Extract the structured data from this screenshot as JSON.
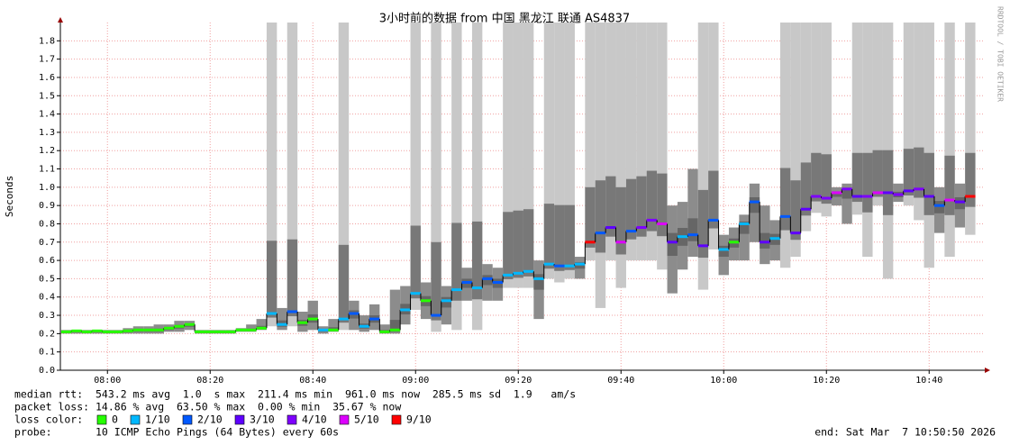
{
  "chart_data": {
    "type": "smokeping",
    "title": "3小时前的数据 from 中国 黑龙江 联通 AS4837",
    "y_label": "Seconds",
    "side_text": "RRDTOOL / TOBI OETIKER",
    "x": [
      "07:52",
      "07:54",
      "07:56",
      "07:58",
      "08:00",
      "08:02",
      "08:04",
      "08:06",
      "08:08",
      "08:10",
      "08:12",
      "08:14",
      "08:16",
      "08:18",
      "08:20",
      "08:22",
      "08:24",
      "08:26",
      "08:28",
      "08:30",
      "08:32",
      "08:34",
      "08:36",
      "08:38",
      "08:40",
      "08:42",
      "08:44",
      "08:46",
      "08:48",
      "08:50",
      "08:52",
      "08:54",
      "08:56",
      "08:58",
      "09:00",
      "09:02",
      "09:04",
      "09:06",
      "09:08",
      "09:10",
      "09:12",
      "09:14",
      "09:16",
      "09:18",
      "09:20",
      "09:22",
      "09:24",
      "09:26",
      "09:28",
      "09:30",
      "09:32",
      "09:34",
      "09:36",
      "09:38",
      "09:40",
      "09:42",
      "09:44",
      "09:46",
      "09:48",
      "09:50",
      "09:52",
      "09:54",
      "09:56",
      "09:58",
      "10:00",
      "10:02",
      "10:04",
      "10:06",
      "10:08",
      "10:10",
      "10:12",
      "10:14",
      "10:16",
      "10:18",
      "10:20",
      "10:22",
      "10:24",
      "10:26",
      "10:28",
      "10:30",
      "10:32",
      "10:34",
      "10:36",
      "10:38",
      "10:40",
      "10:42",
      "10:44",
      "10:46",
      "10:48"
    ],
    "xlim": [
      "07:50:50",
      "10:50:50"
    ],
    "xticks": [
      "08:00",
      "08:20",
      "08:40",
      "09:00",
      "09:20",
      "09:40",
      "10:00",
      "10:20",
      "10:40"
    ],
    "ylim": [
      0,
      1.9
    ],
    "yticks": [
      {
        "value": 0,
        "label": "0.0"
      },
      0.1,
      0.2,
      0.3,
      0.4,
      0.5,
      0.6,
      0.7,
      0.8,
      0.9,
      {
        "value": 1,
        "label": "1.0"
      },
      1.1,
      1.2,
      1.3,
      1.4,
      1.5,
      1.6,
      1.7,
      1.8
    ],
    "grid": true,
    "median": [
      0.21,
      0.215,
      0.21,
      0.215,
      0.21,
      0.21,
      0.215,
      0.22,
      0.22,
      0.22,
      0.23,
      0.24,
      0.25,
      0.21,
      0.21,
      0.21,
      0.21,
      0.22,
      0.22,
      0.23,
      0.31,
      0.25,
      0.32,
      0.26,
      0.28,
      0.22,
      0.22,
      0.28,
      0.31,
      0.24,
      0.28,
      0.21,
      0.22,
      0.33,
      0.42,
      0.38,
      0.3,
      0.38,
      0.44,
      0.48,
      0.45,
      0.5,
      0.48,
      0.52,
      0.53,
      0.54,
      0.5,
      0.58,
      0.57,
      0.57,
      0.58,
      0.7,
      0.75,
      0.78,
      0.7,
      0.76,
      0.78,
      0.82,
      0.8,
      0.7,
      0.73,
      0.74,
      0.68,
      0.82,
      0.66,
      0.7,
      0.8,
      0.92,
      0.7,
      0.72,
      0.84,
      0.75,
      0.88,
      0.95,
      0.94,
      0.97,
      0.99,
      0.95,
      0.95,
      0.97,
      0.97,
      0.96,
      0.98,
      0.99,
      0.95,
      0.9,
      0.93,
      0.92,
      0.95
    ],
    "min": [
      0.2,
      0.2,
      0.2,
      0.2,
      0.2,
      0.2,
      0.2,
      0.2,
      0.2,
      0.2,
      0.21,
      0.21,
      0.22,
      0.2,
      0.2,
      0.2,
      0.2,
      0.21,
      0.21,
      0.22,
      0.24,
      0.22,
      0.24,
      0.21,
      0.22,
      0.2,
      0.21,
      0.22,
      0.22,
      0.21,
      0.22,
      0.2,
      0.2,
      0.25,
      0.33,
      0.28,
      0.21,
      0.25,
      0.22,
      0.38,
      0.22,
      0.38,
      0.38,
      0.45,
      0.45,
      0.45,
      0.28,
      0.5,
      0.48,
      0.5,
      0.5,
      0.6,
      0.34,
      0.6,
      0.45,
      0.6,
      0.6,
      0.6,
      0.55,
      0.42,
      0.55,
      0.62,
      0.44,
      0.66,
      0.52,
      0.6,
      0.6,
      0.7,
      0.58,
      0.6,
      0.56,
      0.62,
      0.76,
      0.86,
      0.84,
      0.9,
      0.8,
      0.85,
      0.62,
      0.9,
      0.5,
      0.92,
      0.9,
      0.82,
      0.56,
      0.75,
      0.62,
      0.78,
      0.74
    ],
    "max": [
      0.22,
      0.22,
      0.22,
      0.22,
      0.22,
      0.22,
      0.23,
      0.24,
      0.24,
      0.25,
      0.25,
      0.27,
      0.27,
      0.22,
      0.22,
      0.22,
      0.22,
      0.23,
      0.25,
      0.28,
      1.9,
      0.34,
      1.9,
      0.32,
      0.38,
      0.24,
      0.28,
      1.9,
      0.38,
      0.3,
      0.36,
      0.25,
      0.44,
      0.46,
      1.9,
      0.48,
      1.9,
      0.46,
      1.9,
      0.56,
      1.9,
      0.58,
      0.56,
      1.9,
      1.9,
      1.9,
      0.6,
      1.9,
      1.9,
      1.9,
      0.62,
      1.9,
      1.9,
      1.9,
      1.9,
      1.9,
      1.9,
      1.9,
      1.9,
      0.9,
      0.92,
      1.1,
      1.9,
      1.9,
      0.74,
      0.78,
      0.85,
      1.02,
      0.9,
      0.82,
      1.9,
      1.9,
      1.9,
      1.9,
      1.9,
      1.0,
      1.02,
      1.9,
      1.9,
      1.9,
      1.9,
      1.02,
      1.9,
      1.9,
      1.9,
      1.0,
      1.9,
      1.02,
      1.9
    ],
    "loss": [
      0,
      0,
      0,
      0,
      0,
      0,
      0,
      0,
      0,
      0,
      0,
      0,
      0,
      0,
      0,
      0,
      0,
      0,
      0,
      0,
      1,
      1,
      2,
      0,
      0,
      1,
      0,
      1,
      2,
      1,
      2,
      0,
      0,
      1,
      1,
      0,
      2,
      1,
      1,
      2,
      1,
      2,
      2,
      1,
      1,
      1,
      1,
      1,
      2,
      1,
      1,
      9,
      2,
      3,
      5,
      2,
      4,
      4,
      5,
      3,
      1,
      2,
      3,
      2,
      1,
      0,
      1,
      2,
      3,
      1,
      2,
      3,
      3,
      4,
      4,
      5,
      4,
      3,
      4,
      5,
      3,
      4,
      3,
      4,
      3,
      2,
      5,
      3,
      9
    ],
    "loss_colors": [
      {
        "label": "0",
        "loss": 0,
        "color": "#26ff00"
      },
      {
        "label": "1/10",
        "loss": 1,
        "color": "#00b8ff"
      },
      {
        "label": "2/10",
        "loss": 2,
        "color": "#0059ff"
      },
      {
        "label": "3/10",
        "loss": 3,
        "color": "#5e00ff"
      },
      {
        "label": "4/10",
        "loss": 4,
        "color": "#7e00ff"
      },
      {
        "label": "5/10",
        "loss": 5,
        "color": "#dd00ff"
      },
      {
        "label": "9/10",
        "loss": 9,
        "color": "#ff0000"
      }
    ],
    "legend_title": "loss color:",
    "stats": {
      "median_rtt": "median rtt:  543.2 ms avg  1.0  s max  211.4 ms min  961.0 ms now  285.5 ms sd  1.9   am/s",
      "packet_loss": "packet loss: 14.86 % avg  63.50 % max  0.00 % min  35.67 % now",
      "probe": "probe:       10 ICMP Echo Pings (64 Bytes) every 60s",
      "end": "end: Sat Mar  7 10:50:50 2026"
    }
  }
}
